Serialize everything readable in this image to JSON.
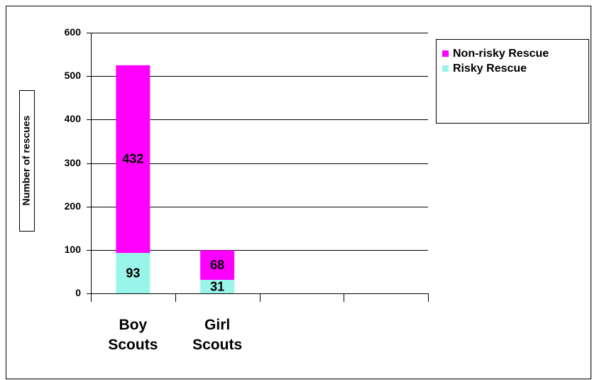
{
  "chart_data": {
    "type": "stacked_bar",
    "categories": [
      "Boy Scouts",
      "Girl Scouts",
      null,
      null
    ],
    "series": [
      {
        "name": "Risky Rescue",
        "color": "#99f5ea",
        "values": [
          93,
          31,
          null,
          null
        ]
      },
      {
        "name": "Non-risky Rescue",
        "color": "#ff00ff",
        "values": [
          432,
          68,
          null,
          null
        ]
      }
    ],
    "y_axis_label": "Number of rescues",
    "ylim": [
      0,
      600
    ],
    "yticks": [
      0,
      100,
      200,
      300,
      400,
      500,
      600
    ],
    "grid": true,
    "legend": "right"
  }
}
